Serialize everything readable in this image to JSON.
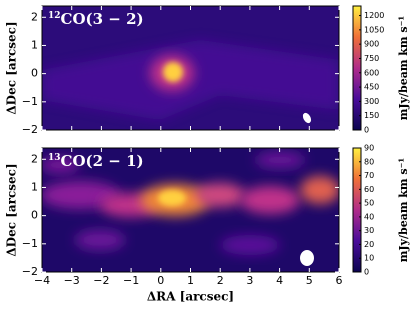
{
  "chart_data": [
    {
      "type": "image",
      "label_superscript": "12",
      "label": "CO(3 − 2)",
      "ylabel": "ΔDec [arcsec]",
      "xlim": [
        -4,
        6
      ],
      "ylim": [
        -2,
        2.4
      ],
      "xticks": [
        -4,
        -3,
        -2,
        -1,
        0,
        1,
        2,
        3,
        4,
        5,
        6
      ],
      "yticks": [
        {
          "value": -2,
          "label": "−2"
        },
        {
          "value": -1,
          "label": "−1"
        },
        0,
        1,
        2
      ],
      "colorbar": {
        "label": "mJy/beam km s⁻¹",
        "lim": [
          0,
          1300
        ],
        "ticks": [
          0,
          150,
          300,
          450,
          600,
          750,
          900,
          1050,
          1200
        ]
      }
    },
    {
      "type": "image",
      "label_superscript": "13",
      "label": "CO(2 − 1)",
      "ylabel": "ΔDec [arcsec]",
      "xlabel": "ΔRA [arcsec]",
      "xlim": [
        -4,
        6
      ],
      "ylim": [
        -2,
        2.4
      ],
      "xticks": [
        {
          "value": -4,
          "label": "−4"
        },
        {
          "value": -3,
          "label": "−3"
        },
        {
          "value": -2,
          "label": "−2"
        },
        {
          "value": -1,
          "label": "−1"
        },
        0,
        1,
        2,
        3,
        4,
        5,
        6
      ],
      "yticks": [
        {
          "value": -2,
          "label": "−2"
        },
        {
          "value": -1,
          "label": "−1"
        },
        0,
        1,
        2
      ],
      "colorbar": {
        "label": "mJy/beam km s⁻¹",
        "lim": [
          0,
          90
        ],
        "ticks": [
          0,
          10,
          20,
          30,
          40,
          50,
          60,
          70,
          80,
          90
        ]
      }
    }
  ]
}
